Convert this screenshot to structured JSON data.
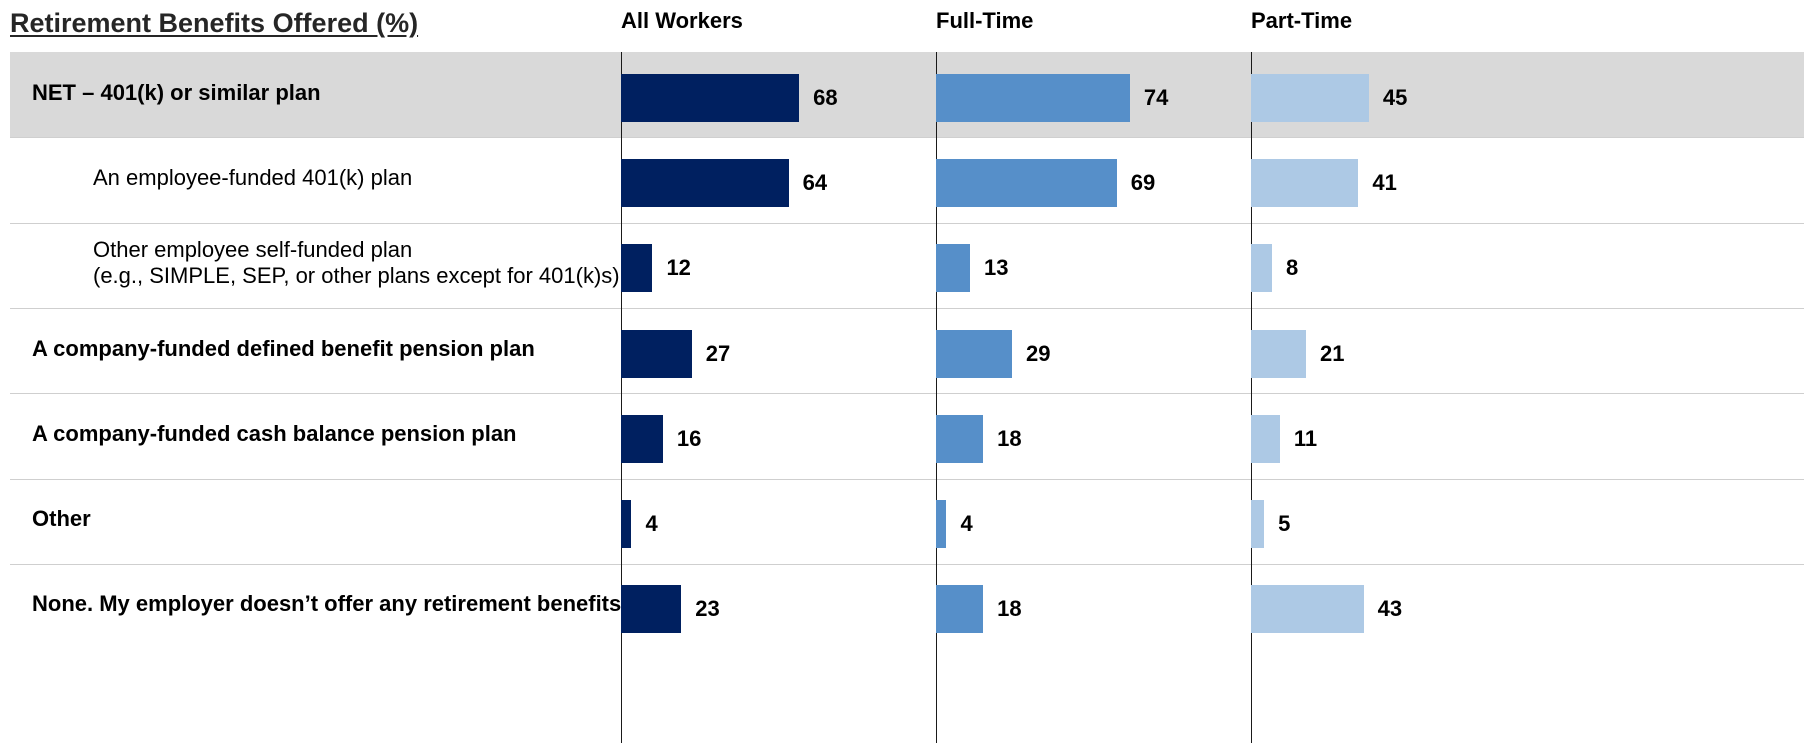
{
  "chart_data": {
    "type": "bar",
    "orientation": "horizontal",
    "title": "Retirement Benefits Offered (%)",
    "categories": [
      {
        "label_lines": [
          "NET – 401(k) or similar plan"
        ],
        "bold": true,
        "indent": false,
        "highlight": true
      },
      {
        "label_lines": [
          "An employee-funded 401(k) plan"
        ],
        "bold": false,
        "indent": true,
        "highlight": false
      },
      {
        "label_lines": [
          "Other employee self-funded plan",
          "(e.g., SIMPLE, SEP, or other plans except for 401(k)s)"
        ],
        "bold": false,
        "indent": true,
        "highlight": false
      },
      {
        "label_lines": [
          "A company-funded defined benefit pension plan"
        ],
        "bold": true,
        "indent": false,
        "highlight": false
      },
      {
        "label_lines": [
          "A company-funded cash balance pension plan"
        ],
        "bold": true,
        "indent": false,
        "highlight": false
      },
      {
        "label_lines": [
          "Other"
        ],
        "bold": true,
        "indent": false,
        "highlight": false
      },
      {
        "label_lines": [
          "None. My employer doesn’t offer any retirement benefits."
        ],
        "bold": true,
        "indent": false,
        "highlight": false
      }
    ],
    "series": [
      {
        "name": "All Workers",
        "color": "#002060",
        "values": [
          68,
          64,
          12,
          27,
          16,
          4,
          23
        ]
      },
      {
        "name": "Full-Time",
        "color": "#568fc9",
        "values": [
          74,
          69,
          13,
          29,
          18,
          4,
          18
        ]
      },
      {
        "name": "Part-Time",
        "color": "#adc9e5",
        "values": [
          45,
          41,
          8,
          21,
          11,
          5,
          43
        ]
      }
    ],
    "xlim": [
      0,
      100
    ],
    "value_labels": true,
    "highlight_color": "#d9d9d9",
    "separator_color": "#cfcfcf"
  }
}
